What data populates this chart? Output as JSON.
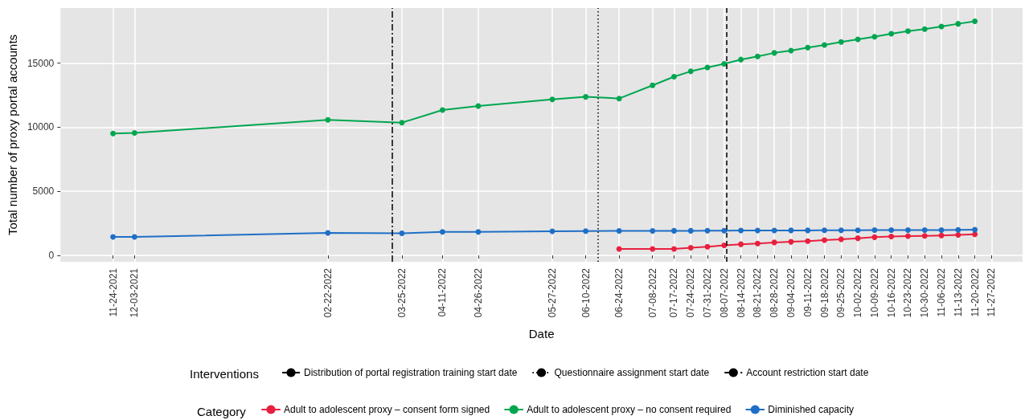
{
  "chart_data": {
    "type": "line",
    "xlabel": "Date",
    "ylabel": "Total number of proxy portal accounts",
    "legend_title": "Category",
    "annotations": [
      "Interventions"
    ],
    "x": [
      "2021-11-24",
      "2021-12-03",
      "2022-02-22",
      "2022-03-25",
      "2022-04-11",
      "2022-04-26",
      "2022-05-27",
      "2022-06-10",
      "2022-06-24",
      "2022-07-08",
      "2022-07-17",
      "2022-07-24",
      "2022-07-31",
      "2022-08-07",
      "2022-08-14",
      "2022-08-21",
      "2022-08-28",
      "2022-09-04",
      "2022-09-11",
      "2022-09-18",
      "2022-09-25",
      "2022-10-02",
      "2022-10-09",
      "2022-10-16",
      "2022-10-23",
      "2022-10-30",
      "2022-11-06",
      "2022-11-13",
      "2022-11-20"
    ],
    "series": [
      {
        "name": "Adult to adolescent proxy – consent form signed",
        "color": "#e8203f",
        "values": [
          null,
          null,
          null,
          null,
          null,
          null,
          null,
          null,
          500,
          500,
          500,
          600,
          670,
          780,
          870,
          930,
          1010,
          1060,
          1110,
          1190,
          1260,
          1340,
          1420,
          1470,
          1500,
          1520,
          1550,
          1600,
          1650
        ]
      },
      {
        "name": "Adult to adolescent proxy – no consent required",
        "color": "#00a650",
        "values": [
          9510,
          9560,
          10570,
          10360,
          11340,
          11650,
          12170,
          12370,
          12240,
          13270,
          13940,
          14360,
          14660,
          14950,
          15280,
          15520,
          15800,
          15980,
          16210,
          16420,
          16650,
          16860,
          17060,
          17290,
          17500,
          17650,
          17860,
          18070,
          18270
        ]
      },
      {
        "name": "Diminished capacity",
        "color": "#1f6fc6",
        "values": [
          1440,
          1440,
          1750,
          1720,
          1830,
          1830,
          1880,
          1900,
          1910,
          1910,
          1920,
          1920,
          1930,
          1930,
          1940,
          1940,
          1940,
          1950,
          1950,
          1960,
          1960,
          1960,
          1970,
          1970,
          1970,
          1980,
          1980,
          1990,
          2000
        ]
      }
    ],
    "xlim": [
      "2021-11-02",
      "2022-12-10"
    ],
    "xticks": [
      {
        "value": "2021-11-24",
        "label": "11-24-2021"
      },
      {
        "value": "2021-12-03",
        "label": "12-03-2021"
      },
      {
        "value": "2022-02-22",
        "label": "02-22-2022"
      },
      {
        "value": "2022-03-25",
        "label": "03-25-2022"
      },
      {
        "value": "2022-04-11",
        "label": "04-11-2022"
      },
      {
        "value": "2022-04-26",
        "label": "04-26-2022"
      },
      {
        "value": "2022-05-27",
        "label": "05-27-2022"
      },
      {
        "value": "2022-06-10",
        "label": "06-10-2022"
      },
      {
        "value": "2022-06-24",
        "label": "06-24-2022"
      },
      {
        "value": "2022-07-08",
        "label": "07-08-2022"
      },
      {
        "value": "2022-07-17",
        "label": "07-17-2022"
      },
      {
        "value": "2022-07-24",
        "label": "07-24-2022"
      },
      {
        "value": "2022-07-31",
        "label": "07-31-2022"
      },
      {
        "value": "2022-08-07",
        "label": "08-07-2022"
      },
      {
        "value": "2022-08-14",
        "label": "08-14-2022"
      },
      {
        "value": "2022-08-21",
        "label": "08-21-2022"
      },
      {
        "value": "2022-08-28",
        "label": "08-28-2022"
      },
      {
        "value": "2022-09-04",
        "label": "09-04-2022"
      },
      {
        "value": "2022-09-11",
        "label": "09-11-2022"
      },
      {
        "value": "2022-09-18",
        "label": "09-18-2022"
      },
      {
        "value": "2022-09-25",
        "label": "09-25-2022"
      },
      {
        "value": "2022-10-02",
        "label": "10-02-2022"
      },
      {
        "value": "2022-10-09",
        "label": "10-09-2022"
      },
      {
        "value": "2022-10-16",
        "label": "10-16-2022"
      },
      {
        "value": "2022-10-23",
        "label": "10-23-2022"
      },
      {
        "value": "2022-10-30",
        "label": "10-30-2022"
      },
      {
        "value": "2022-11-06",
        "label": "11-06-2022"
      },
      {
        "value": "2022-11-13",
        "label": "11-13-2022"
      },
      {
        "value": "2022-11-20",
        "label": "11-20-2022"
      },
      {
        "value": "2022-11-27",
        "label": "11-27-2022"
      }
    ],
    "ylim": [
      -500,
      19300
    ],
    "yticks": [
      0,
      5000,
      10000,
      15000
    ],
    "ref_lines": [
      {
        "axis": "x",
        "value": "2022-03-21",
        "label": "Distribution of portal registration training start date",
        "line_style": "dashdot",
        "color": "#000000"
      },
      {
        "axis": "x",
        "value": "2022-06-15",
        "label": "Questionnaire assignment start date",
        "line_style": "dotted",
        "color": "#000000"
      },
      {
        "axis": "x",
        "value": "2022-08-08",
        "label": "Account restriction start date",
        "line_style": "dashed",
        "color": "#000000"
      }
    ],
    "grid": true,
    "legend": "bottom",
    "marker": "circle",
    "line_style": "solid"
  }
}
